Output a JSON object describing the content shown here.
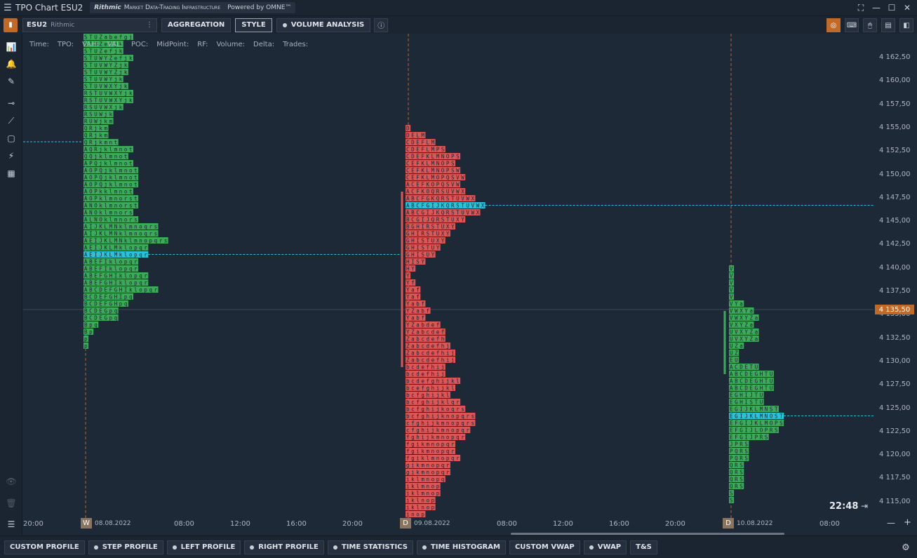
{
  "window": {
    "title": "TPO Chart ESU2",
    "brand_name": "Rithmic",
    "brand_sub": "Market Data-Trading Infrastructure",
    "brand_powered": "Powered by OMNE™",
    "controls": [
      "⛶",
      "—",
      "☐",
      "✕"
    ]
  },
  "toolbar": {
    "symbol": "ESU2",
    "connection": "Rithmic",
    "buttons": [
      {
        "label": "AGGREGATION",
        "dot": false,
        "active": false
      },
      {
        "label": "STYLE",
        "dot": false,
        "active": true
      },
      {
        "label": "VOLUME ANALYSIS",
        "dot": true,
        "active": false
      }
    ]
  },
  "info_fields": [
    "Time:",
    "TPO:",
    "VAH:",
    "VAL:",
    "POC:",
    "MidPoint:",
    "RF:",
    "Volume:",
    "Delta:",
    "Trades:"
  ],
  "price_axis": {
    "labels": [
      "4 162,50",
      "4 160,00",
      "4 157,50",
      "4 155,00",
      "4 152,50",
      "4 150,00",
      "4 147,50",
      "4 145,00",
      "4 142,50",
      "4 140,00",
      "4 137,50",
      "4 135,00",
      "4 132,50",
      "4 130,00",
      "4 127,50",
      "4 125,00",
      "4 122,50",
      "4 120,00",
      "4 117,50",
      "4 115,00"
    ],
    "current_price": "4 135,50"
  },
  "time_axis": {
    "labels": [
      {
        "text": "20:00"
      },
      {
        "text": "08.08.2022",
        "badge": "W"
      },
      {
        "text": "08:00"
      },
      {
        "text": "12:00"
      },
      {
        "text": "16:00"
      },
      {
        "text": "20:00"
      },
      {
        "text": "09.08.2022",
        "badge": "D"
      },
      {
        "text": "08:00"
      },
      {
        "text": "12:00"
      },
      {
        "text": "16:00"
      },
      {
        "text": "20:00"
      },
      {
        "text": "10.08.2022",
        "badge": "D"
      },
      {
        "text": "08:00"
      }
    ]
  },
  "clock": "22:48",
  "profiles": [
    {
      "name": "08.08.2022",
      "color": "#3daa5b",
      "poc_color": "#2cc1d6",
      "rows": [
        "STUZabefgj",
        "STUZefjk",
        "STUZefjk",
        "STUWYZefjk",
        "STUVWYZjk",
        "STUVWYZjk",
        "STUVWYjk",
        "STUVWXYjk",
        "RSTUVWXYjk",
        "RSTUVWXYjk",
        "RSUVWXjk",
        "RSUWjk",
        "RUWjkm",
        "QRjkm",
        "QRjkm",
        "QRjkmnt",
        "AQRjklmnot",
        "QQjklmnot",
        "APQjklmnot",
        "AOPQjklmnot",
        "AOPQjklmnot",
        "AOPQjklmnot",
        "AOPkklmnot",
        "AOPklmnorst",
        "ANOklmnorst",
        "ANOklmnors",
        "ALNOklmnors",
        "AIJKLMNklmnoqrs",
        "AIJKLMNklmnoqrs",
        "AEIJKLMNklmnopqrs",
        "AEIJKLMklopqr",
        "AEIJKLMklopqr",
        "ABEFIklopqr",
        "ABEFIklopqr",
        "ABEFGHIklopqr",
        "ABEFGHIklopqr",
        "ABCDEFGHIklopqr",
        "BCDEFGHIpq",
        "BCDEFGHpq",
        "BCDEGpq",
        "BCDEGpq",
        "Bpq",
        "Bp",
        "p",
        "p"
      ],
      "poc_index": 31
    },
    {
      "name": "09.08.2022",
      "color": "#d95757",
      "poc_color": "#2cc1d6",
      "rows": [
        "D",
        "DELM",
        "CDEFLM",
        "CDEFLMPS",
        "CDEFKLMNOPS",
        "CEFKLMNOPS",
        "CEFKLMNOPSW",
        "CEFKLMOPQSVW",
        "ACEFKOPQSVW",
        "ACFKOQRSUVWX",
        "ABCFGKQRSTUVWX",
        "ABCFGIJKQRSTUVWX",
        "ABCGIJKQRSTUVWX",
        "BCGIJQRSTUXY",
        "BGHIRSTUXY",
        "GHIRSTUXY",
        "GHISTUXY",
        "GHISTUY",
        "GHISUY",
        "HISY",
        "HY",
        "Y",
        "Yf",
        "Yaf",
        "Yaf",
        "Yabf",
        "YZabf",
        "Yabf",
        "YZabdef",
        "YZabcdef",
        "Zabcdefh",
        "Zabcdefhj",
        "Zabcdefhij",
        "Zabcdefhij",
        "bcdefhij",
        "bcdefhij",
        "bcdefghijkl",
        "bcefghijkl",
        "bcfghijkl",
        "bcfghijklqr",
        "bcfghijkoqrs",
        "bcfghijknopqrs",
        "cfghijkmnopqrs",
        "cfghijkmnopqr",
        "fghijkmnopqr",
        "fgikmnopqr",
        "fgikmnopqr",
        "fgiklmnopqr",
        "gikmnopqr",
        "gikmnopqr",
        "iklmnopq",
        "iklmnop",
        "iklmnop",
        "iklnop",
        "iklnop",
        "inop",
        "inop",
        "nop"
      ],
      "poc_index": 11
    },
    {
      "name": "10.08.2022",
      "color": "#3daa5b",
      "poc_color": "#2cc1d6",
      "rows": [
        "V",
        "V",
        "V",
        "V",
        "V",
        "VYa",
        "VWXYa",
        "VWXYZa",
        "VXYZa",
        "UVXYZa",
        "UVXYZa",
        "UZa",
        "UZ",
        "EU",
        "ACDETU",
        "ABCDEGHTU",
        "ABCDEGHTU",
        "ABCDEGHTU",
        "EGHIJTU",
        "EGHISTU",
        "EGIJKLMNST",
        "EGIJKLMNOST",
        "EFGIJKLMOPS",
        "EFGIJLOPRS",
        "EFGIJPRS",
        "JPRS",
        "PQRS",
        "PQRS",
        "QRS",
        "QRS",
        "QRS",
        "QRS",
        "S",
        "S"
      ],
      "poc_index": 21
    }
  ],
  "bottom_bar": {
    "buttons": [
      {
        "label": "CUSTOM PROFILE",
        "dot": false
      },
      {
        "label": "STEP PROFILE",
        "dot": true
      },
      {
        "label": "LEFT PROFILE",
        "dot": true
      },
      {
        "label": "RIGHT PROFILE",
        "dot": true
      },
      {
        "label": "TIME STATISTICS",
        "dot": true
      },
      {
        "label": "TIME HISTOGRAM",
        "dot": true
      },
      {
        "label": "CUSTOM VWAP",
        "dot": false
      },
      {
        "label": "VWAP",
        "dot": true
      },
      {
        "label": "T&S",
        "dot": false
      }
    ]
  }
}
